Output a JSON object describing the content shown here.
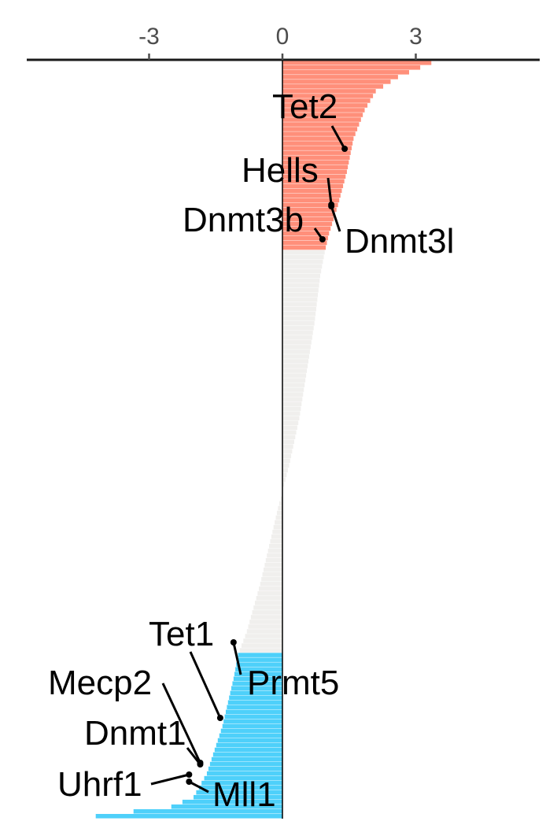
{
  "chart_data": {
    "type": "bar",
    "orientation": "horizontal-diverging",
    "title": "",
    "xlabel": "",
    "ylabel": "",
    "xlim": [
      -5.8,
      5.8
    ],
    "x_ticks": [
      {
        "value": -3,
        "label": "-3"
      },
      {
        "value": 0,
        "label": "0"
      },
      {
        "value": 3,
        "label": "3"
      }
    ],
    "axis_position": "top",
    "grid": false,
    "legend": "none",
    "colors": {
      "up": "#FF8F7A",
      "neutral": "#F0EFED",
      "down": "#4ED0FA",
      "axis": "#1a1a1a",
      "tick_text": "#4d4d4d",
      "label_text": "#000000"
    },
    "n_genes": 160,
    "profile": [
      {
        "rank": 0,
        "value": 3.35
      },
      {
        "rank": 3,
        "value": 2.6
      },
      {
        "rank": 6,
        "value": 2.1
      },
      {
        "rank": 10,
        "value": 1.85
      },
      {
        "rank": 16,
        "value": 1.6
      },
      {
        "rank": 23,
        "value": 1.45
      },
      {
        "rank": 30,
        "value": 1.25
      },
      {
        "rank": 36,
        "value": 1.05
      },
      {
        "rank": 40,
        "value": 0.95
      },
      {
        "rank": 45,
        "value": 0.85
      },
      {
        "rank": 55,
        "value": 0.72
      },
      {
        "rank": 65,
        "value": 0.55
      },
      {
        "rank": 75,
        "value": 0.38
      },
      {
        "rank": 85,
        "value": 0.15
      },
      {
        "rank": 94,
        "value": -0.1
      },
      {
        "rank": 100,
        "value": -0.25
      },
      {
        "rank": 110,
        "value": -0.5
      },
      {
        "rank": 120,
        "value": -0.8
      },
      {
        "rank": 125,
        "value": -1.0
      },
      {
        "rank": 130,
        "value": -1.1
      },
      {
        "rank": 140,
        "value": -1.35
      },
      {
        "rank": 150,
        "value": -1.7
      },
      {
        "rank": 155,
        "value": -2.0
      },
      {
        "rank": 157,
        "value": -2.5
      },
      {
        "rank": 159,
        "value": -4.2
      }
    ],
    "up_threshold_rank": 40,
    "down_threshold_rank": 125,
    "labels": [
      {
        "gene": "Tet2",
        "value": 1.4,
        "side": "up"
      },
      {
        "gene": "Hells",
        "value": 1.1,
        "side": "up"
      },
      {
        "gene": "Dnmt3l",
        "value": 1.1,
        "side": "up"
      },
      {
        "gene": "Dnmt3b",
        "value": 0.9,
        "side": "up"
      },
      {
        "gene": "Tet1",
        "value": -1.4,
        "side": "down"
      },
      {
        "gene": "Prmt5",
        "value": -1.1,
        "side": "down"
      },
      {
        "gene": "Mecp2",
        "value": -1.85,
        "side": "down"
      },
      {
        "gene": "Dnmt1",
        "value": -1.85,
        "side": "down"
      },
      {
        "gene": "Uhrf1",
        "value": -2.1,
        "side": "down"
      },
      {
        "gene": "Mll1",
        "value": -2.1,
        "side": "down"
      }
    ]
  }
}
